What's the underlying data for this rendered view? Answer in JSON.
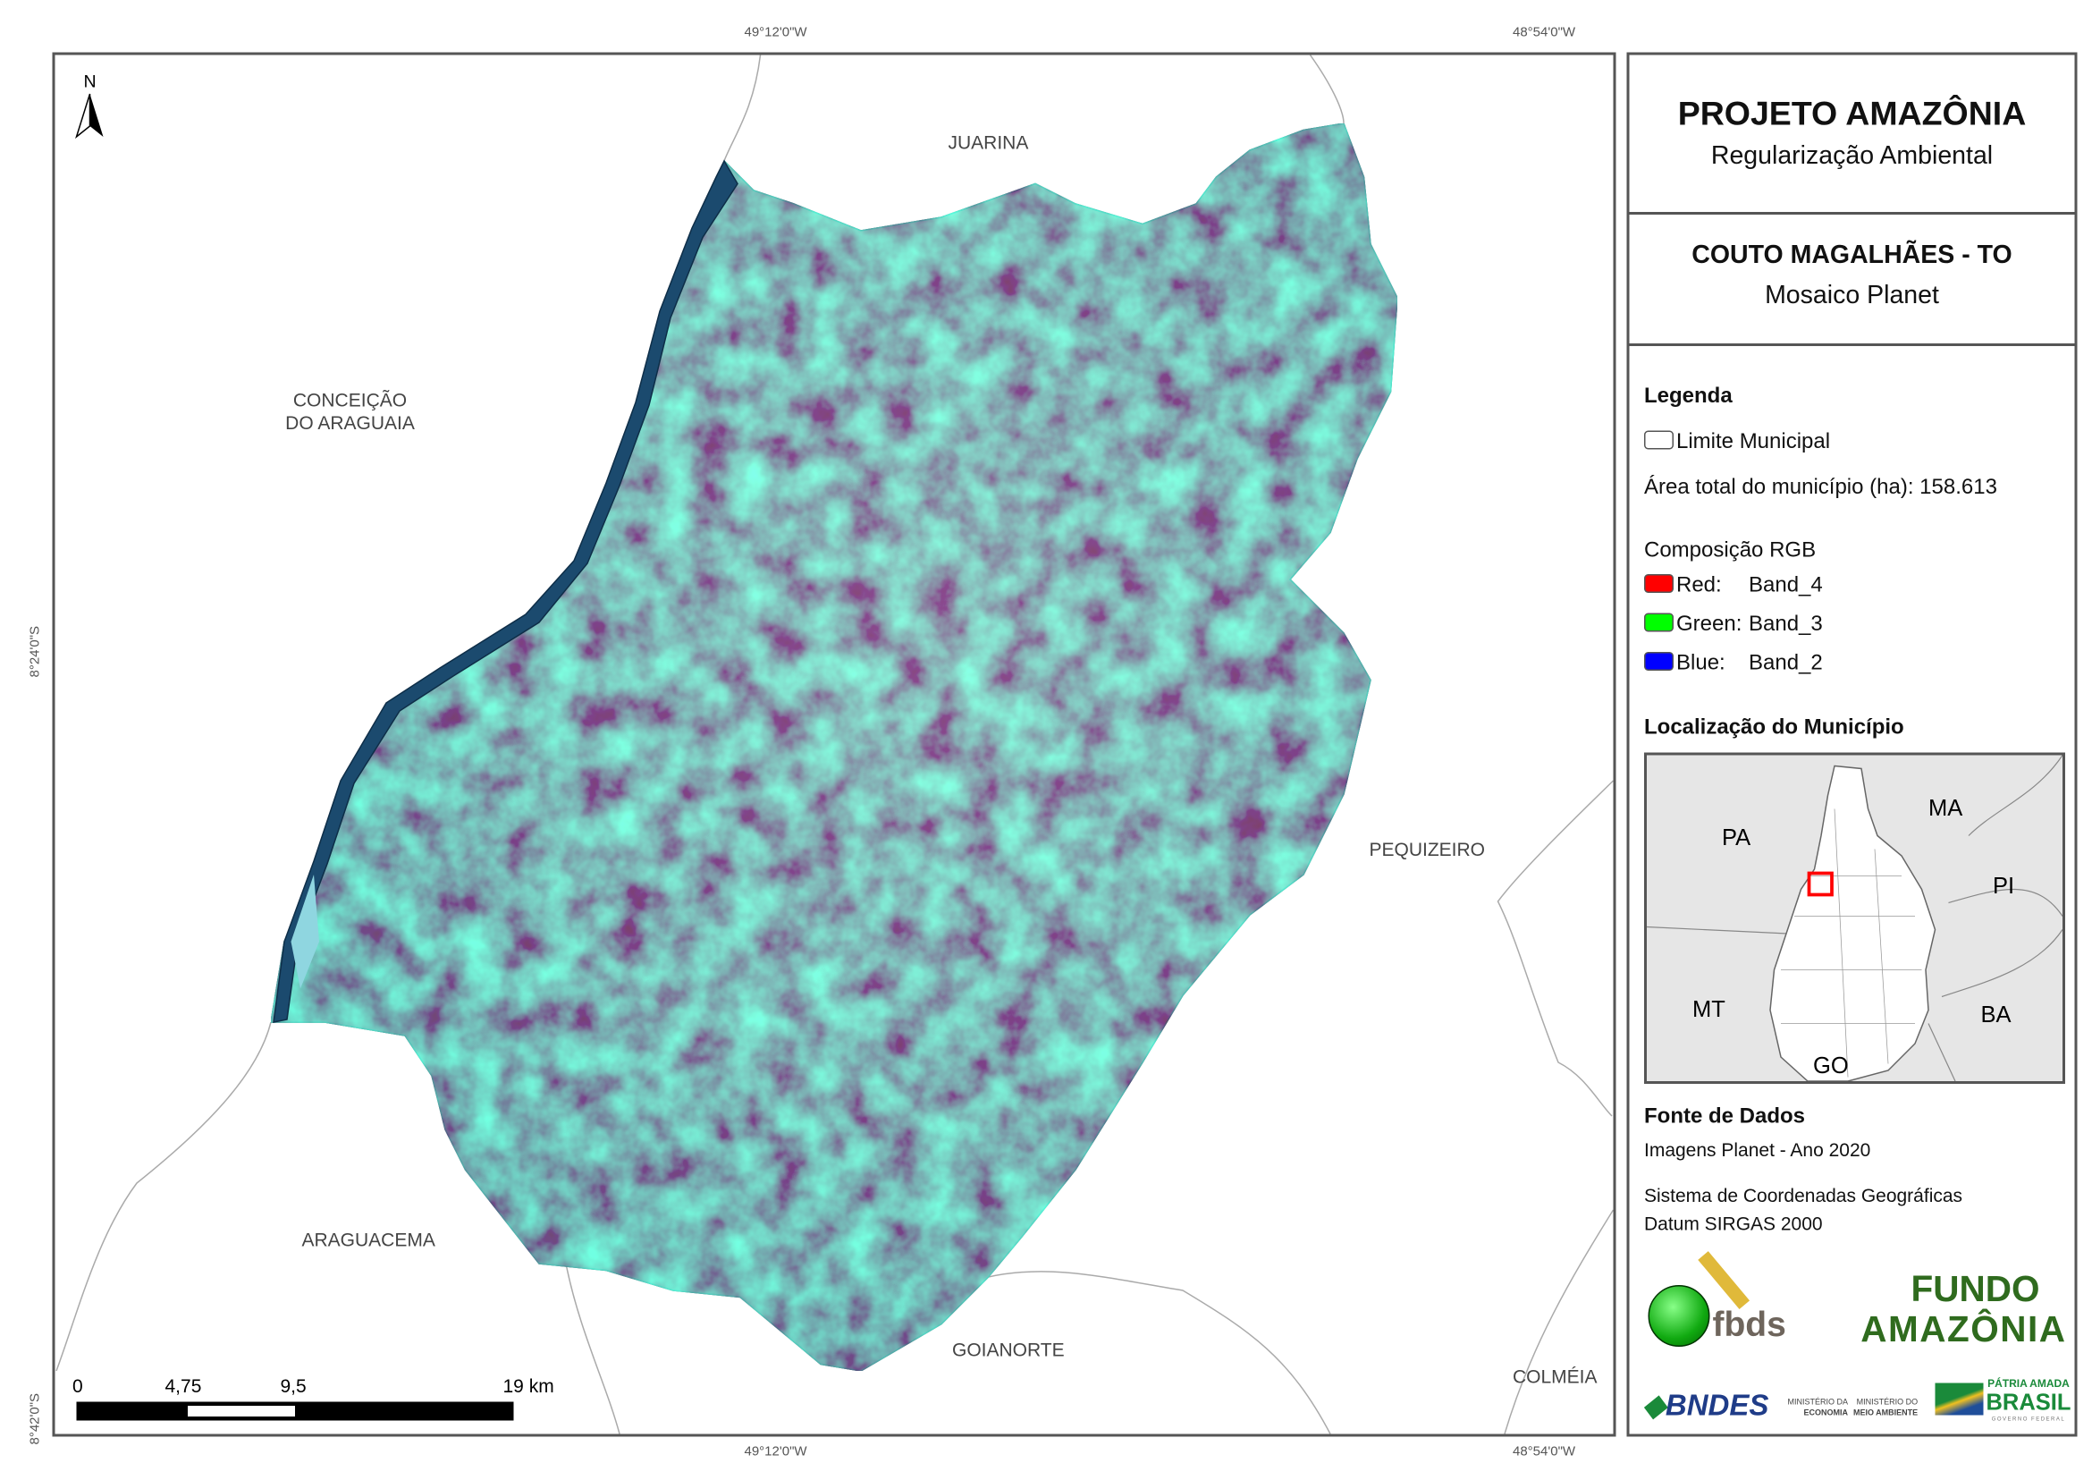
{
  "coordinates": {
    "top": [
      "49°12'0\"W",
      "48°54'0\"W"
    ],
    "bottom": [
      "49°12'0\"W",
      "48°54'0\"W"
    ],
    "left": [
      "8°24'0\"S",
      "8°42'0\"S"
    ]
  },
  "map": {
    "north_label": "N",
    "neighbors": {
      "juarina": "JUARINA",
      "conceicao_1": "CONCEIÇÃO",
      "conceicao_2": "DO ARAGUAIA",
      "pequizeiro": "PEQUIZEIRO",
      "araguacema": "ARAGUACEMA",
      "goianorte": "GOIANORTE",
      "colmeia": "COLMÉIA"
    },
    "scale_bar": {
      "labels": [
        "0",
        "4,75",
        "9,5",
        "19 km"
      ]
    }
  },
  "panel": {
    "project_title": "PROJETO AMAZÔNIA",
    "project_subtitle": "Regularização Ambiental",
    "municipality_title": "COUTO MAGALHÃES - TO",
    "municipality_subtitle": "Mosaico Planet",
    "legend": {
      "title": "Legenda",
      "boundary_label": "Limite Municipal",
      "area_label": "Área total do município (ha): 158.613",
      "rgb_title": "Composição RGB",
      "bands": [
        {
          "channel": "Red:",
          "band": "Band_4",
          "color": "#ff0000"
        },
        {
          "channel": "Green:",
          "band": "Band_3",
          "color": "#00ff00"
        },
        {
          "channel": "Blue:",
          "band": "Band_2",
          "color": "#0000ff"
        }
      ]
    },
    "location": {
      "title": "Localização do Município",
      "states": [
        "PA",
        "MA",
        "PI",
        "MT",
        "BA",
        "GO"
      ],
      "highlight_color": "#ff0000"
    },
    "sources": {
      "title": "Fonte de Dados",
      "line1": "Imagens Planet - Ano 2020",
      "line2": "Sistema de Coordenadas Geográficas",
      "line3": "Datum SIRGAS 2000"
    },
    "logos": {
      "fbds": "fbds",
      "fundo_1": "FUNDO",
      "fundo_2": "AMAZÔNIA",
      "bndes": "BNDES",
      "min_eco_1": "MINISTÉRIO DA",
      "min_eco_2": "ECONOMIA",
      "min_ma_1": "MINISTÉRIO DO",
      "min_ma_2": "MEIO AMBIENTE",
      "patria": "PÁTRIA AMADA",
      "brasil": "BRASIL",
      "gov": "GOVERNO FEDERAL"
    }
  }
}
